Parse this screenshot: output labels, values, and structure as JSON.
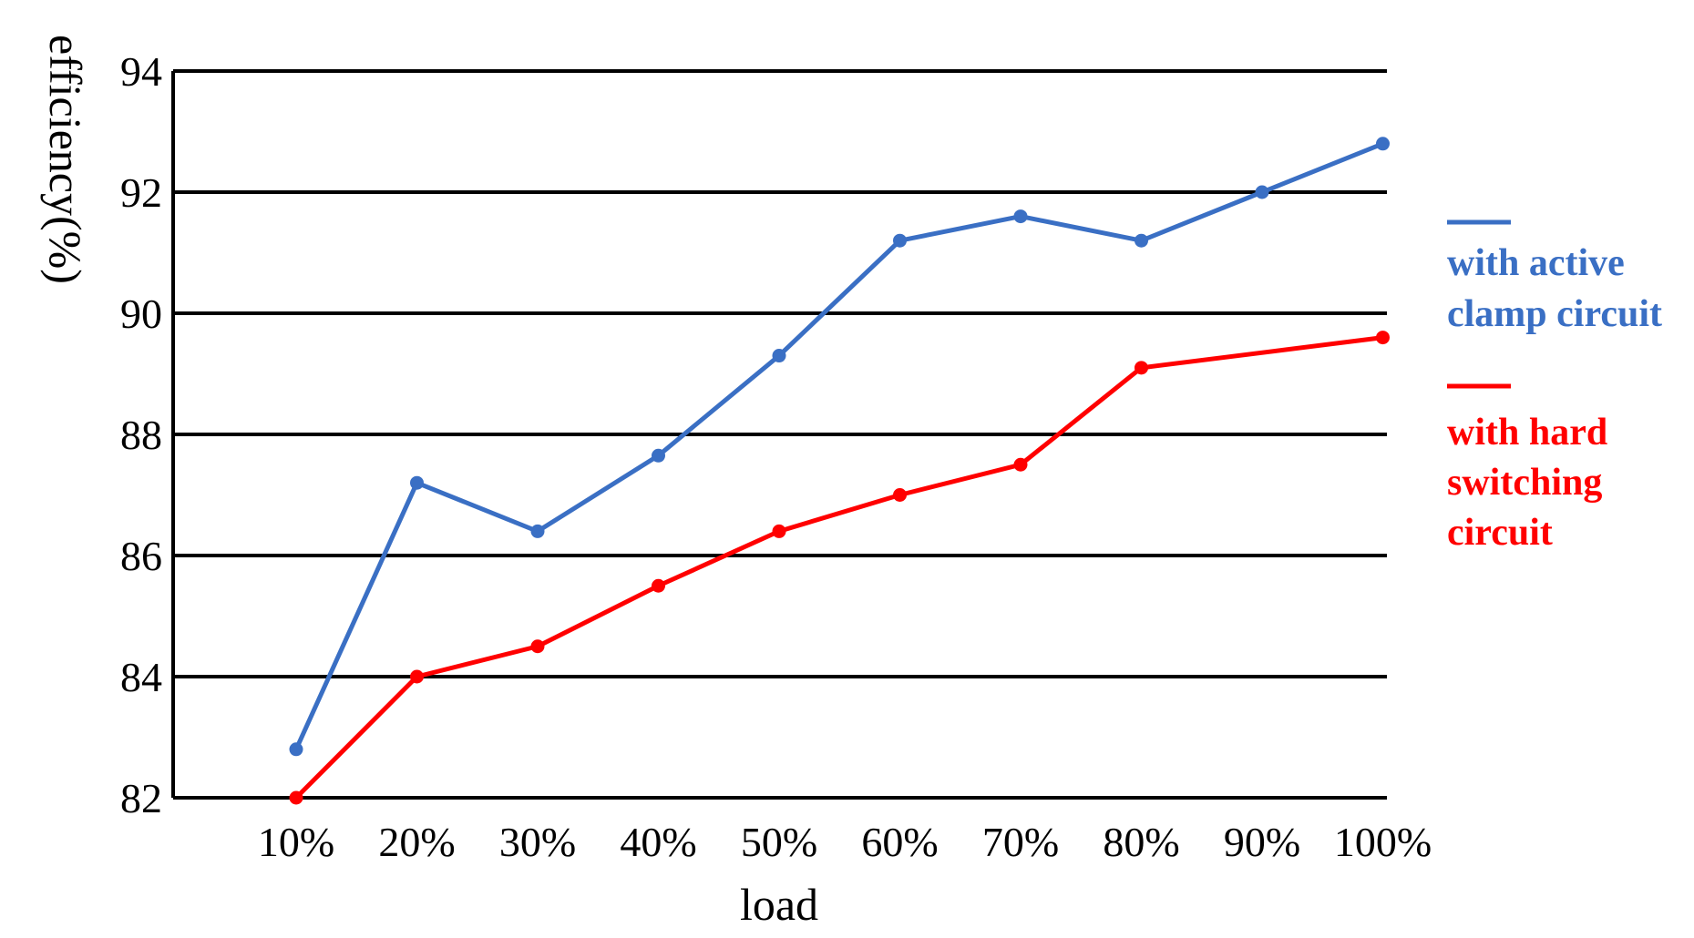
{
  "chart_data": {
    "type": "line",
    "xlabel": "load",
    "ylabel": "efficiency(%)",
    "categories": [
      "10%",
      "20%",
      "30%",
      "40%",
      "50%",
      "60%",
      "70%",
      "80%",
      "90%",
      "100%"
    ],
    "ylim": [
      82,
      94
    ],
    "yticks": [
      "82",
      "84",
      "86",
      "88",
      "90",
      "92",
      "94"
    ],
    "grid": "horizontal",
    "legend_position": "right",
    "series": [
      {
        "name_lines": [
          "with active",
          "clamp circuit"
        ],
        "color": "#3a6fc4",
        "values": [
          82.8,
          87.2,
          86.4,
          87.65,
          89.3,
          91.2,
          91.6,
          91.2,
          92.0,
          92.8
        ]
      },
      {
        "name_lines": [
          "with hard",
          "switching",
          "circuit"
        ],
        "color": "#ff0000",
        "values": [
          82.0,
          84.0,
          84.5,
          85.5,
          86.4,
          87.0,
          87.5,
          89.1,
          null,
          89.6
        ]
      }
    ]
  }
}
